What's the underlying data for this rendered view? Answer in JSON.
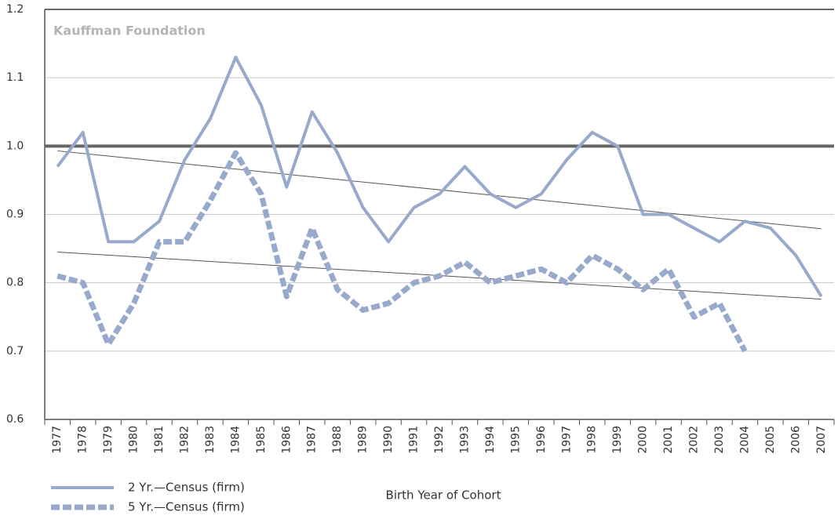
{
  "chart_data": {
    "type": "line",
    "annotation": "Kauffman Foundation",
    "x_label": "Birth Year of Cohort",
    "categories": [
      "1977",
      "1978",
      "1979",
      "1980",
      "1981",
      "1982",
      "1983",
      "1984",
      "1985",
      "1986",
      "1987",
      "1988",
      "1989",
      "1990",
      "1991",
      "1992",
      "1993",
      "1994",
      "1995",
      "1996",
      "1997",
      "1998",
      "1999",
      "2000",
      "2001",
      "2002",
      "2003",
      "2004",
      "2005",
      "2006",
      "2007"
    ],
    "series": [
      {
        "name": "2 Yr.—Census (firm)",
        "color": "#97aacb",
        "dashed": false,
        "values": [
          0.97,
          1.02,
          0.86,
          0.86,
          0.89,
          0.98,
          1.04,
          1.13,
          1.06,
          0.94,
          1.05,
          0.99,
          0.91,
          0.86,
          0.91,
          0.93,
          0.97,
          0.93,
          0.91,
          0.93,
          0.98,
          1.02,
          1.0,
          0.9,
          0.9,
          0.88,
          0.86,
          0.89,
          0.88,
          0.84,
          0.78
        ]
      },
      {
        "name": "5 Yr.—Census (firm)",
        "color": "#97aacb",
        "dashed": true,
        "values": [
          0.81,
          0.8,
          0.71,
          0.77,
          0.86,
          0.86,
          0.92,
          0.99,
          0.93,
          0.78,
          0.88,
          0.79,
          0.76,
          0.77,
          0.8,
          0.81,
          0.83,
          0.8,
          0.81,
          0.82,
          0.8,
          0.84,
          0.82,
          0.79,
          0.82,
          0.75,
          0.77,
          0.7,
          null,
          null,
          null
        ]
      }
    ],
    "trendlines": [
      [
        0.993,
        0.879
      ],
      [
        0.845,
        0.776
      ]
    ],
    "reference_line": 1,
    "ylim": [
      0.6,
      1.2
    ],
    "yticks": [
      0.6,
      0.7,
      0.8,
      0.9,
      {
        "value": 1,
        "label": "1.0"
      },
      1.1,
      1.2
    ],
    "grid": true,
    "legend": "bottom-left"
  }
}
